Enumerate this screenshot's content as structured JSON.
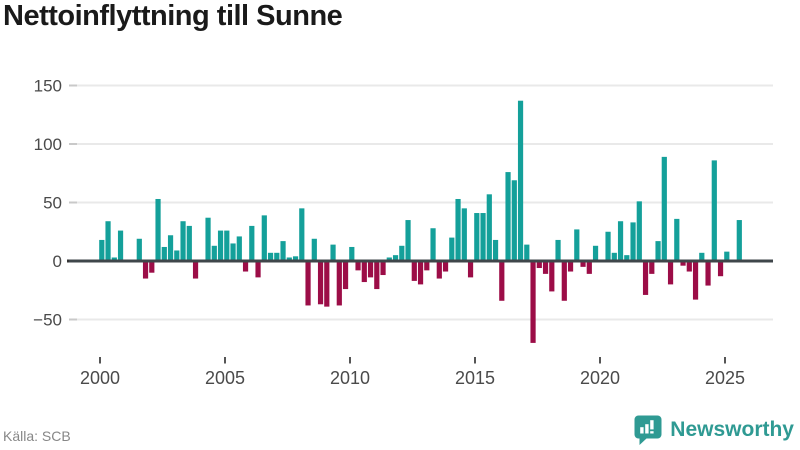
{
  "title": "Nettoinflyttning till Sunne",
  "source": "Källa: SCB",
  "branding": {
    "logo_text": "Newsworthy"
  },
  "colors": {
    "positive_bar": "#14a09a",
    "negative_bar": "#9c0d47",
    "zero_line": "#3f464a",
    "gridline": "#e9e9e9",
    "axis_text": "#4a4a4a",
    "tick_mark": "#c9c9c9",
    "zero_tick": "#333333",
    "title_text": "#1a1a1a",
    "source_text": "#878787",
    "brand_teal": "#2f9a93"
  },
  "chart_data": {
    "type": "bar",
    "title": "Nettoinflyttning till Sunne",
    "frequency": "quarterly",
    "start": "2000-Q1",
    "end": "2025-Q3",
    "values": [
      18,
      34,
      3,
      26,
      0,
      0,
      19,
      -15,
      -10,
      53,
      12,
      22,
      9,
      34,
      30,
      -15,
      0,
      37,
      13,
      26,
      26,
      15,
      21,
      -9,
      30,
      -14,
      39,
      7,
      7,
      17,
      3,
      4,
      45,
      -38,
      19,
      -37,
      -39,
      14,
      -38,
      -24,
      12,
      -8,
      -18,
      -14,
      -24,
      -12,
      3,
      5,
      13,
      35,
      -17,
      -20,
      -8,
      28,
      -15,
      -9,
      20,
      53,
      45,
      -14,
      41,
      41,
      57,
      18,
      -34,
      76,
      69,
      137,
      14,
      -70,
      -6,
      -11,
      -26,
      18,
      -34,
      -9,
      27,
      -5,
      -11,
      13,
      0,
      25,
      7,
      34,
      5,
      33,
      51,
      -29,
      -11,
      17,
      89,
      -20,
      36,
      -4,
      -9,
      -33,
      7,
      -21,
      86,
      -13,
      8,
      0,
      35
    ],
    "x_tick_years": [
      2000,
      2005,
      2010,
      2015,
      2020,
      2025
    ],
    "x_tick_labels": [
      "2000",
      "2005",
      "2010",
      "2015",
      "2020",
      "2025"
    ],
    "y_ticks": [
      -50,
      0,
      50,
      100,
      150
    ],
    "ylim": [
      -78,
      158
    ],
    "xlabel": "",
    "ylabel": "",
    "grid": "horizontal",
    "legend": "none"
  }
}
